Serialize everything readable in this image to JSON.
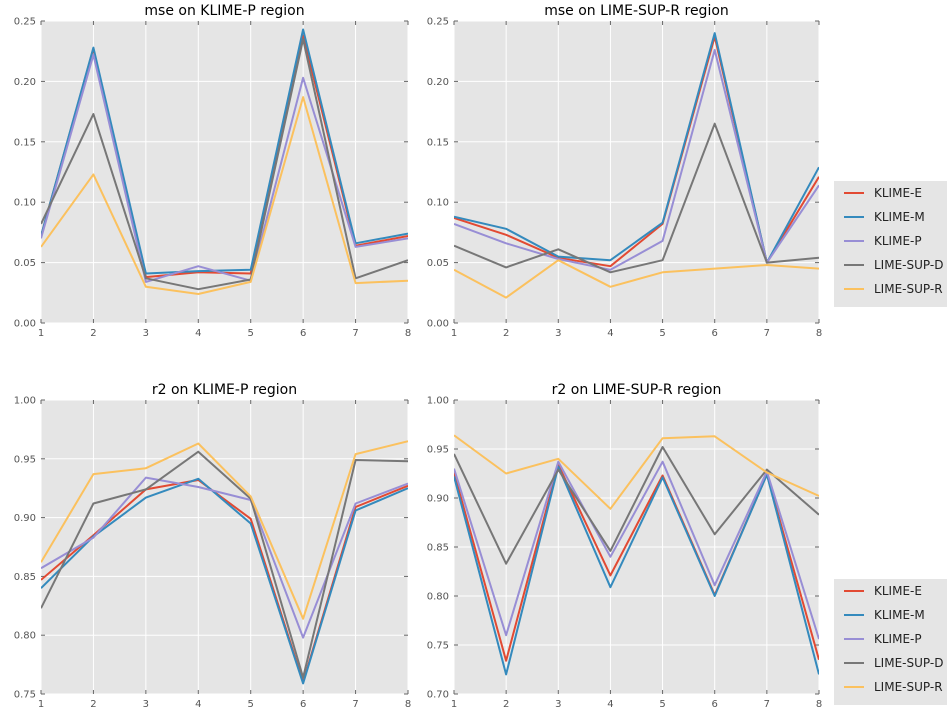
{
  "colors": {
    "plot_background": "#e5e5e5",
    "grid": "#ffffff",
    "legend_background": "#e5e5e5"
  },
  "legend": {
    "placement": "right",
    "entries": [
      {
        "name": "KLIME-E",
        "color": "#e24a33"
      },
      {
        "name": "KLIME-M",
        "color": "#348abd"
      },
      {
        "name": "KLIME-P",
        "color": "#988ed5"
      },
      {
        "name": "LIME-SUP-D",
        "color": "#777777"
      },
      {
        "name": "LIME-SUP-R",
        "color": "#fbc15e"
      }
    ]
  },
  "chart_data": [
    {
      "type": "line",
      "title": "mse on KLIME-P region",
      "xlabel": "",
      "ylabel": "",
      "x": [
        1,
        2,
        3,
        4,
        5,
        6,
        7,
        8
      ],
      "xlim": [
        1,
        8
      ],
      "ylim": [
        0.0,
        0.25
      ],
      "xticks": [
        1,
        2,
        3,
        4,
        5,
        6,
        7,
        8
      ],
      "yticks": [
        0.0,
        0.05,
        0.1,
        0.15,
        0.2,
        0.25
      ],
      "ytick_labels": [
        "0.00",
        "0.05",
        "0.10",
        "0.15",
        "0.20",
        "0.25"
      ],
      "grid": true,
      "series": [
        {
          "name": "KLIME-E",
          "color": "#e24a33",
          "values": [
            0.072,
            0.227,
            0.038,
            0.042,
            0.041,
            0.238,
            0.064,
            0.072
          ]
        },
        {
          "name": "KLIME-M",
          "color": "#348abd",
          "values": [
            0.072,
            0.228,
            0.041,
            0.043,
            0.044,
            0.243,
            0.066,
            0.074
          ]
        },
        {
          "name": "KLIME-P",
          "color": "#988ed5",
          "values": [
            0.07,
            0.222,
            0.034,
            0.047,
            0.035,
            0.203,
            0.063,
            0.07
          ]
        },
        {
          "name": "LIME-SUP-D",
          "color": "#777777",
          "values": [
            0.082,
            0.173,
            0.037,
            0.028,
            0.036,
            0.235,
            0.037,
            0.052
          ]
        },
        {
          "name": "LIME-SUP-R",
          "color": "#fbc15e",
          "values": [
            0.063,
            0.123,
            0.03,
            0.024,
            0.034,
            0.187,
            0.033,
            0.035
          ]
        }
      ]
    },
    {
      "type": "line",
      "title": "mse on LIME-SUP-R region",
      "xlabel": "",
      "ylabel": "",
      "x": [
        1,
        2,
        3,
        4,
        5,
        6,
        7,
        8
      ],
      "xlim": [
        1,
        8
      ],
      "ylim": [
        0.0,
        0.25
      ],
      "xticks": [
        1,
        2,
        3,
        4,
        5,
        6,
        7,
        8
      ],
      "yticks": [
        0.0,
        0.05,
        0.1,
        0.15,
        0.2,
        0.25
      ],
      "ytick_labels": [
        "0.00",
        "0.05",
        "0.10",
        "0.15",
        "0.20",
        "0.25"
      ],
      "grid": true,
      "series": [
        {
          "name": "KLIME-E",
          "color": "#e24a33",
          "values": [
            0.087,
            0.073,
            0.054,
            0.047,
            0.082,
            0.237,
            0.05,
            0.121
          ]
        },
        {
          "name": "KLIME-M",
          "color": "#348abd",
          "values": [
            0.088,
            0.078,
            0.055,
            0.052,
            0.083,
            0.24,
            0.05,
            0.129
          ]
        },
        {
          "name": "KLIME-P",
          "color": "#988ed5",
          "values": [
            0.082,
            0.066,
            0.053,
            0.044,
            0.068,
            0.226,
            0.05,
            0.114
          ]
        },
        {
          "name": "LIME-SUP-D",
          "color": "#777777",
          "values": [
            0.064,
            0.046,
            0.061,
            0.042,
            0.052,
            0.165,
            0.05,
            0.054
          ]
        },
        {
          "name": "LIME-SUP-R",
          "color": "#fbc15e",
          "values": [
            0.044,
            0.021,
            0.052,
            0.03,
            0.042,
            0.045,
            0.048,
            0.045
          ]
        }
      ]
    },
    {
      "type": "line",
      "title": "r2 on KLIME-P region",
      "xlabel": "",
      "ylabel": "",
      "x": [
        1,
        2,
        3,
        4,
        5,
        6,
        7,
        8
      ],
      "xlim": [
        1,
        8
      ],
      "ylim": [
        0.75,
        1.0
      ],
      "xticks": [
        1,
        2,
        3,
        4,
        5,
        6,
        7,
        8
      ],
      "yticks": [
        0.75,
        0.8,
        0.85,
        0.9,
        0.95,
        1.0
      ],
      "ytick_labels": [
        "0.75",
        "0.80",
        "0.85",
        "0.90",
        "0.95",
        "1.00"
      ],
      "grid": true,
      "series": [
        {
          "name": "KLIME-E",
          "color": "#e24a33",
          "values": [
            0.847,
            0.885,
            0.924,
            0.932,
            0.899,
            0.76,
            0.909,
            0.927
          ]
        },
        {
          "name": "KLIME-M",
          "color": "#348abd",
          "values": [
            0.84,
            0.884,
            0.917,
            0.933,
            0.895,
            0.759,
            0.906,
            0.925
          ]
        },
        {
          "name": "KLIME-P",
          "color": "#988ed5",
          "values": [
            0.857,
            0.883,
            0.934,
            0.926,
            0.915,
            0.798,
            0.912,
            0.929
          ]
        },
        {
          "name": "LIME-SUP-D",
          "color": "#777777",
          "values": [
            0.823,
            0.912,
            0.924,
            0.956,
            0.916,
            0.764,
            0.949,
            0.948
          ]
        },
        {
          "name": "LIME-SUP-R",
          "color": "#fbc15e",
          "values": [
            0.862,
            0.937,
            0.942,
            0.963,
            0.918,
            0.814,
            0.954,
            0.965
          ]
        }
      ]
    },
    {
      "type": "line",
      "title": "r2 on LIME-SUP-R region",
      "xlabel": "",
      "ylabel": "",
      "x": [
        1,
        2,
        3,
        4,
        5,
        6,
        7,
        8
      ],
      "xlim": [
        1,
        8
      ],
      "ylim": [
        0.7,
        1.0
      ],
      "xticks": [
        1,
        2,
        3,
        4,
        5,
        6,
        7,
        8
      ],
      "yticks": [
        0.7,
        0.75,
        0.8,
        0.85,
        0.9,
        0.95,
        1.0
      ],
      "ytick_labels": [
        "0.70",
        "0.75",
        "0.80",
        "0.85",
        "0.90",
        "0.95",
        "1.00"
      ],
      "grid": true,
      "series": [
        {
          "name": "KLIME-E",
          "color": "#e24a33",
          "values": [
            0.926,
            0.734,
            0.934,
            0.821,
            0.923,
            0.801,
            0.924,
            0.735
          ]
        },
        {
          "name": "KLIME-M",
          "color": "#348abd",
          "values": [
            0.922,
            0.72,
            0.932,
            0.809,
            0.921,
            0.8,
            0.924,
            0.72
          ]
        },
        {
          "name": "KLIME-P",
          "color": "#988ed5",
          "values": [
            0.93,
            0.76,
            0.937,
            0.84,
            0.937,
            0.811,
            0.927,
            0.756
          ]
        },
        {
          "name": "LIME-SUP-D",
          "color": "#777777",
          "values": [
            0.945,
            0.833,
            0.929,
            0.846,
            0.952,
            0.863,
            0.929,
            0.883
          ]
        },
        {
          "name": "LIME-SUP-R",
          "color": "#fbc15e",
          "values": [
            0.964,
            0.925,
            0.94,
            0.889,
            0.961,
            0.963,
            0.926,
            0.902
          ]
        }
      ]
    }
  ]
}
